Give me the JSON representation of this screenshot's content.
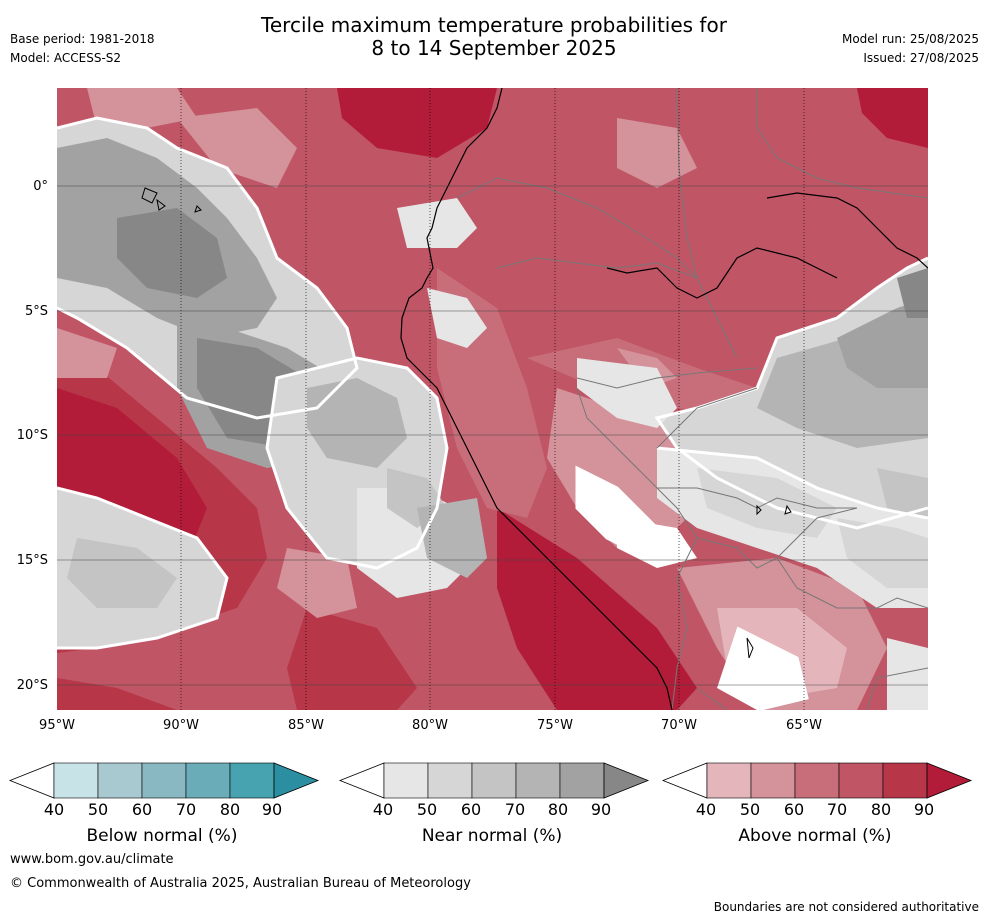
{
  "header": {
    "title_line1": "Tercile maximum temperature probabilities for",
    "title_line2": "8 to 14 September 2025",
    "base_period": "Base period: 1981-2018",
    "model": "Model: ACCESS-S2",
    "model_run": "Model run: 25/08/2025",
    "issued": "Issued: 27/08/2025"
  },
  "map": {
    "lat_labels": [
      "0°",
      "5°S",
      "10°S",
      "15°S",
      "20°S"
    ],
    "lon_labels": [
      "95°W",
      "90°W",
      "85°W",
      "80°W",
      "75°W",
      "70°W",
      "65°W"
    ]
  },
  "colorbars": [
    {
      "title": "Below normal (%)",
      "ticks": [
        "40",
        "50",
        "60",
        "70",
        "80",
        "90"
      ],
      "colors": [
        "#ffffff",
        "#c8e3e8",
        "#a7c9cf",
        "#8ab8c2",
        "#6aadb8",
        "#48a3b1",
        "#2b8fa1"
      ]
    },
    {
      "title": "Near normal (%)",
      "ticks": [
        "40",
        "50",
        "60",
        "70",
        "80",
        "90"
      ],
      "colors": [
        "#ffffff",
        "#e6e6e6",
        "#d6d6d6",
        "#c4c4c4",
        "#b4b4b4",
        "#a2a2a2",
        "#878787"
      ]
    },
    {
      "title": "Above normal (%)",
      "ticks": [
        "40",
        "50",
        "60",
        "70",
        "80",
        "90"
      ],
      "colors": [
        "#ffffff",
        "#e4b6bc",
        "#d4929b",
        "#c86e7b",
        "#c05565",
        "#b73648",
        "#b21c38"
      ]
    }
  ],
  "footer": {
    "website": "www.bom.gov.au/climate",
    "copyright": "© Commonwealth of Australia 2025, Australian Bureau of Meteorology",
    "disclaimer": "Boundaries are not considered authoritative"
  }
}
